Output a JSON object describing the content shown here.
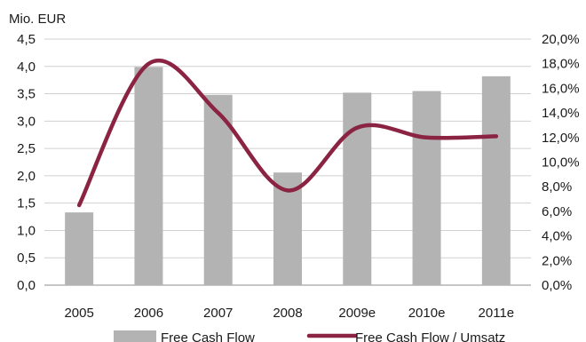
{
  "chart_data": {
    "type": "bar",
    "unit_label": "Mio. EUR",
    "categories": [
      "2005",
      "2006",
      "2007",
      "2008",
      "2009e",
      "2010e",
      "2011e"
    ],
    "ylim": [
      0,
      4.5
    ],
    "y_ticks": [
      "0,0",
      "0,5",
      "1,0",
      "1,5",
      "2,0",
      "2,5",
      "3,0",
      "3,5",
      "4,0",
      "4,5"
    ],
    "y2lim": [
      0,
      20
    ],
    "y2_ticks": [
      "0,0%",
      "2,0%",
      "4,0%",
      "6,0%",
      "8,0%",
      "10,0%",
      "12,0%",
      "14,0%",
      "16,0%",
      "18,0%",
      "20,0%"
    ],
    "grid": true,
    "legend_position": "bottom",
    "series": [
      {
        "name": "Free Cash Flow",
        "type": "bar",
        "axis": "left",
        "color": "#b3b3b3",
        "values": [
          1.33,
          3.99,
          3.48,
          2.06,
          3.52,
          3.55,
          3.82
        ]
      },
      {
        "name": "Free Cash Flow / Umsatz",
        "type": "line",
        "axis": "right",
        "color": "#8b2343",
        "smooth": true,
        "values": [
          6.5,
          18.0,
          14.0,
          7.7,
          12.8,
          12.0,
          12.1
        ]
      }
    ]
  }
}
